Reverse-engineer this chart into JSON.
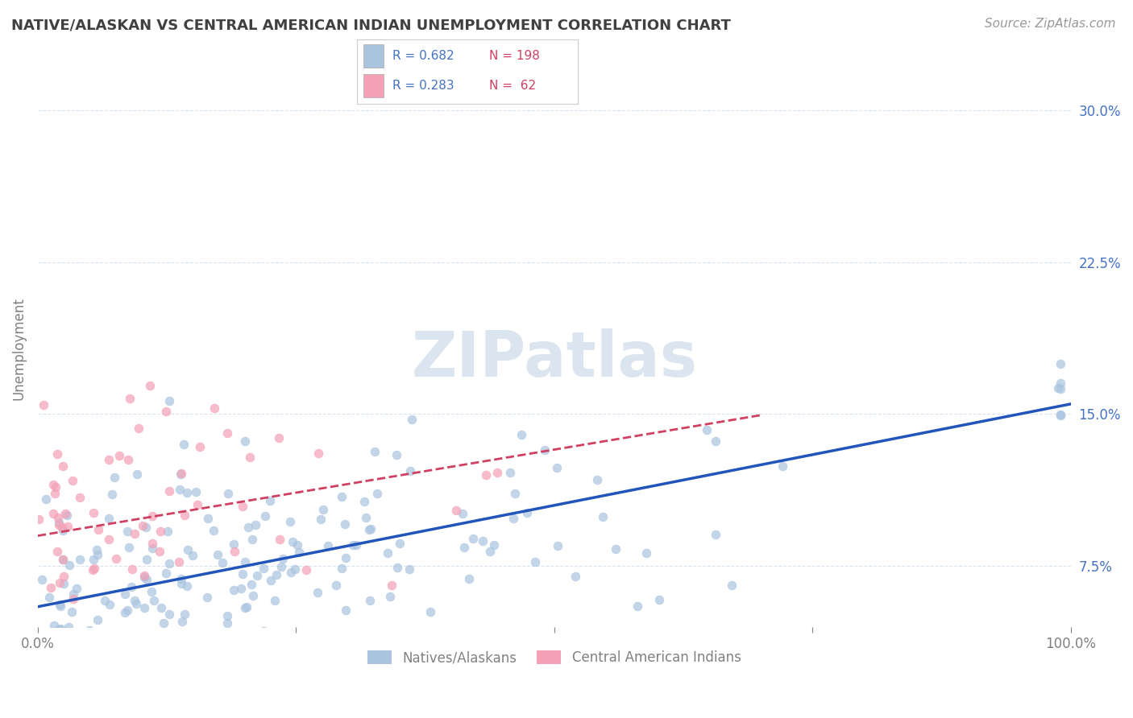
{
  "title": "NATIVE/ALASKAN VS CENTRAL AMERICAN INDIAN UNEMPLOYMENT CORRELATION CHART",
  "source": "Source: ZipAtlas.com",
  "ylabel": "Unemployment",
  "xlim": [
    0,
    100
  ],
  "ylim": [
    4.5,
    32
  ],
  "yticks": [
    7.5,
    15.0,
    22.5,
    30.0
  ],
  "xticks": [
    0,
    25,
    50,
    75,
    100
  ],
  "xtick_labels": [
    "0.0%",
    "",
    "",
    "",
    "100.0%"
  ],
  "ytick_labels": [
    "7.5%",
    "15.0%",
    "22.5%",
    "30.0%"
  ],
  "series1_label": "Natives/Alaskans",
  "series2_label": "Central American Indians",
  "series1_color": "#aac4e0",
  "series2_color": "#f4a0b5",
  "series1_line_color": "#2255bb",
  "series2_line_color": "#d04060",
  "series1_R": 0.682,
  "series1_N": 198,
  "series2_R": 0.283,
  "series2_N": 62,
  "background_color": "#ffffff",
  "watermark": "ZIPatlas",
  "watermark_color": "#c8d8e8",
  "grid_color": "#d8e4f0",
  "title_color": "#404040",
  "axis_color": "#808080",
  "ytick_color": "#4472c4",
  "legend_R_color": "#4472c4",
  "legend_N_color": "#d04060",
  "series1_slope": 0.1,
  "series1_intercept": 5.5,
  "series2_slope": 0.085,
  "series2_intercept": 9.0
}
